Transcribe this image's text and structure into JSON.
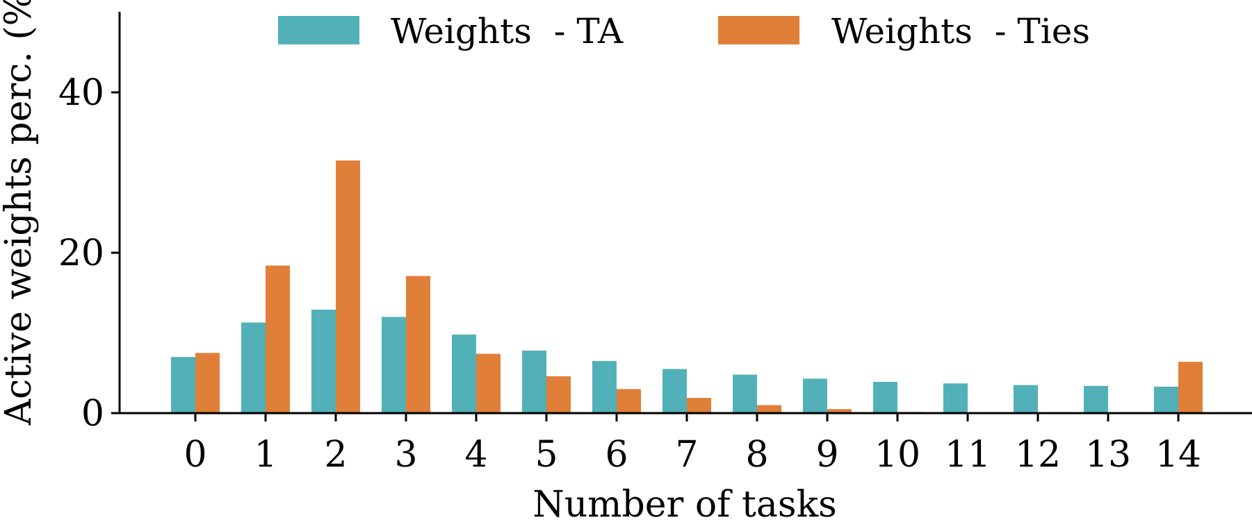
{
  "chart_data": {
    "type": "bar",
    "title": "",
    "xlabel": "Number of tasks",
    "ylabel": "Active weights perc. (%)",
    "categories": [
      "0",
      "1",
      "2",
      "3",
      "4",
      "5",
      "6",
      "7",
      "8",
      "9",
      "10",
      "11",
      "12",
      "13",
      "14"
    ],
    "ylim": [
      0,
      50
    ],
    "yticks": [
      0,
      20,
      40
    ],
    "legend_position": "top",
    "grid": false,
    "series": [
      {
        "name": "Weights  - TA",
        "color": "#52b1b8",
        "values": [
          7.0,
          11.3,
          12.9,
          12.0,
          9.8,
          7.8,
          6.5,
          5.5,
          4.8,
          4.3,
          3.9,
          3.7,
          3.5,
          3.4,
          3.3
        ]
      },
      {
        "name": "Weights  - Ties",
        "color": "#e07f38",
        "values": [
          7.5,
          18.4,
          31.5,
          17.1,
          7.4,
          4.6,
          3.0,
          1.9,
          1.0,
          0.5,
          0.15,
          0.0,
          0.0,
          0.0,
          6.4
        ]
      }
    ]
  }
}
